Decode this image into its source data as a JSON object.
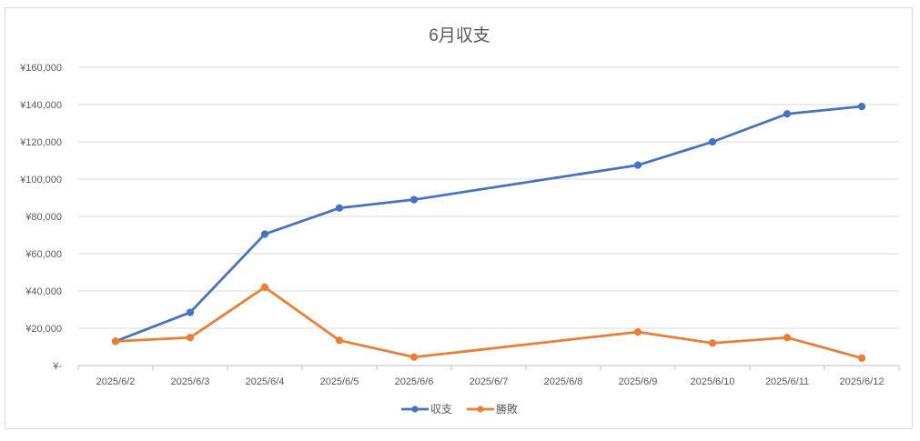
{
  "chart_data": {
    "type": "line",
    "title": "6月収支",
    "categories": [
      "2025/6/2",
      "2025/6/3",
      "2025/6/4",
      "2025/6/5",
      "2025/6/6",
      "2025/6/7",
      "2025/6/8",
      "2025/6/9",
      "2025/6/10",
      "2025/6/11",
      "2025/6/12"
    ],
    "y_tick_labels": [
      "¥-",
      "¥20,000",
      "¥40,000",
      "¥60,000",
      "¥80,000",
      "¥100,000",
      "¥120,000",
      "¥140,000",
      "¥160,000"
    ],
    "ylim": [
      0,
      160000
    ],
    "y_step": 20000,
    "grid": true,
    "legend_position": "bottom",
    "series": [
      {
        "name": "収支",
        "color": "#4472c4",
        "points": [
          {
            "x": "2025/6/2",
            "y": 13000
          },
          {
            "x": "2025/6/3",
            "y": 28500
          },
          {
            "x": "2025/6/4",
            "y": 70500
          },
          {
            "x": "2025/6/5",
            "y": 84500
          },
          {
            "x": "2025/6/6",
            "y": 89000
          },
          {
            "x": "2025/6/9",
            "y": 107500
          },
          {
            "x": "2025/6/10",
            "y": 120000
          },
          {
            "x": "2025/6/11",
            "y": 135000
          },
          {
            "x": "2025/6/12",
            "y": 139000
          }
        ]
      },
      {
        "name": "勝敗",
        "color": "#ed7d31",
        "points": [
          {
            "x": "2025/6/2",
            "y": 13000
          },
          {
            "x": "2025/6/3",
            "y": 15000
          },
          {
            "x": "2025/6/4",
            "y": 42000
          },
          {
            "x": "2025/6/5",
            "y": 13500
          },
          {
            "x": "2025/6/6",
            "y": 4500
          },
          {
            "x": "2025/6/9",
            "y": 18000
          },
          {
            "x": "2025/6/10",
            "y": 12000
          },
          {
            "x": "2025/6/11",
            "y": 15000
          },
          {
            "x": "2025/6/12",
            "y": 4000
          }
        ]
      }
    ]
  }
}
